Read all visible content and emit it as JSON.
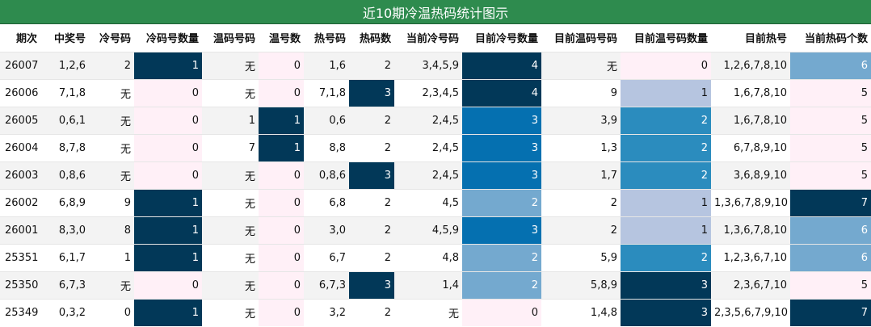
{
  "title": "近10期冷温热码统计图示",
  "columns": [
    "期次",
    "中奖号",
    "冷号码",
    "冷码号数量",
    "温码号码",
    "温号数",
    "热号码",
    "热码数",
    "当前冷号码",
    "目前冷号数量",
    "目前温码号码",
    "目前温号码数量",
    "目前热号",
    "当前热码个数"
  ],
  "rows": [
    [
      "26007",
      "1,2,6",
      "2",
      "1",
      "无",
      "0",
      "1,6",
      "2",
      "3,4,5,9",
      "4",
      "无",
      "0",
      "1,2,6,7,8,10",
      "6"
    ],
    [
      "26006",
      "7,1,8",
      "无",
      "0",
      "无",
      "0",
      "7,1,8",
      "3",
      "2,3,4,5",
      "4",
      "9",
      "1",
      "1,6,7,8,10",
      "5"
    ],
    [
      "26005",
      "0,6,1",
      "无",
      "0",
      "1",
      "1",
      "0,6",
      "2",
      "2,4,5",
      "3",
      "3,9",
      "2",
      "1,6,7,8,10",
      "5"
    ],
    [
      "26004",
      "8,7,8",
      "无",
      "0",
      "7",
      "1",
      "8,8",
      "2",
      "2,4,5",
      "3",
      "1,3",
      "2",
      "6,7,8,9,10",
      "5"
    ],
    [
      "26003",
      "0,8,6",
      "无",
      "0",
      "无",
      "0",
      "0,8,6",
      "3",
      "2,4,5",
      "3",
      "1,7",
      "2",
      "3,6,8,9,10",
      "5"
    ],
    [
      "26002",
      "6,8,9",
      "9",
      "1",
      "无",
      "0",
      "6,8",
      "2",
      "4,5",
      "2",
      "2",
      "1",
      "1,3,6,7,8,9,10",
      "7"
    ],
    [
      "26001",
      "8,3,0",
      "8",
      "1",
      "无",
      "0",
      "3,0",
      "2",
      "4,5,9",
      "3",
      "2",
      "1",
      "1,3,6,7,8,10",
      "6"
    ],
    [
      "25351",
      "6,1,7",
      "1",
      "1",
      "无",
      "0",
      "6,7",
      "2",
      "4,8",
      "2",
      "5,9",
      "2",
      "1,2,3,6,7,10",
      "6"
    ],
    [
      "25350",
      "6,7,3",
      "无",
      "0",
      "无",
      "0",
      "6,7,3",
      "3",
      "1,4",
      "2",
      "5,8,9",
      "3",
      "2,3,6,7,10",
      "5"
    ],
    [
      "25349",
      "0,3,2",
      "0",
      "1",
      "无",
      "0",
      "3,2",
      "2",
      "无",
      "0",
      "1,4,8",
      "3",
      "2,3,5,6,7,9,10",
      "7"
    ]
  ],
  "cell_styles": [
    [
      "",
      "",
      "",
      "dark",
      "",
      "zero",
      "",
      "",
      "",
      "dark",
      "",
      "zero",
      "",
      "lv2"
    ],
    [
      "",
      "",
      "",
      "zero",
      "",
      "zero",
      "",
      "dark",
      "",
      "dark",
      "",
      "lv1",
      "",
      "zero"
    ],
    [
      "",
      "",
      "",
      "zero",
      "",
      "dark",
      "",
      "",
      "",
      "lv3",
      "",
      "lv2b",
      "",
      "zero"
    ],
    [
      "",
      "",
      "",
      "zero",
      "",
      "dark",
      "",
      "",
      "",
      "lv3",
      "",
      "lv2b",
      "",
      "zero"
    ],
    [
      "",
      "",
      "",
      "zero",
      "",
      "zero",
      "",
      "dark",
      "",
      "lv3",
      "",
      "lv2b",
      "",
      "zero"
    ],
    [
      "",
      "",
      "",
      "dark",
      "",
      "zero",
      "",
      "",
      "",
      "lv2",
      "",
      "lv1",
      "",
      "dark"
    ],
    [
      "",
      "",
      "",
      "dark",
      "",
      "zero",
      "",
      "",
      "",
      "lv3",
      "",
      "lv1",
      "",
      "lv2"
    ],
    [
      "",
      "",
      "",
      "dark",
      "",
      "zero",
      "",
      "",
      "",
      "lv2",
      "",
      "lv2b",
      "",
      "lv2"
    ],
    [
      "",
      "",
      "",
      "zero",
      "",
      "zero",
      "",
      "dark",
      "",
      "lv2",
      "",
      "dark",
      "",
      "zero"
    ],
    [
      "",
      "",
      "",
      "dark",
      "",
      "zero",
      "",
      "",
      "",
      "zero",
      "",
      "dark",
      "",
      "dark"
    ]
  ]
}
